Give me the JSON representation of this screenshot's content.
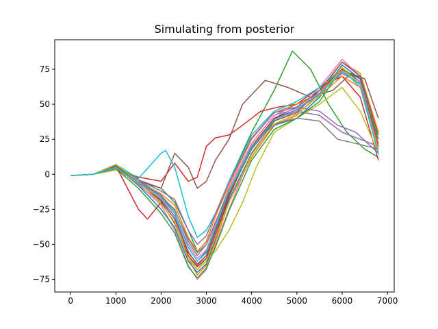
{
  "chart_data": {
    "type": "line",
    "title": "Simulating from posterior",
    "xlabel": "",
    "ylabel": "",
    "xlim": [
      -350,
      7150
    ],
    "ylim": [
      -84,
      96
    ],
    "xticks": [
      0,
      1000,
      2000,
      3000,
      4000,
      5000,
      6000,
      7000
    ],
    "yticks": [
      -75,
      -50,
      -25,
      0,
      25,
      50,
      75
    ],
    "grid": false,
    "legend": "none",
    "palette": [
      "#1f77b4",
      "#ff7f0e",
      "#2ca02c",
      "#d62728",
      "#9467bd",
      "#8c564b",
      "#e377c2",
      "#7f7f7f",
      "#bcbd22",
      "#17becf"
    ],
    "series": [
      {
        "x": [
          0,
          500,
          1000,
          1500,
          2000,
          2300,
          2600,
          2800,
          3000,
          3200,
          3500,
          4000,
          4500,
          5000,
          5500,
          6000,
          6400,
          6800
        ],
        "y": [
          -1,
          0,
          7,
          -4,
          -15,
          -28,
          -52,
          -62,
          -55,
          -40,
          -12,
          18,
          40,
          48,
          60,
          75,
          68,
          22
        ]
      },
      {
        "x": [
          0,
          500,
          1000,
          1500,
          2000,
          2300,
          2600,
          2800,
          3000,
          3200,
          3500,
          4000,
          4500,
          5000,
          5500,
          6000,
          6400,
          6800
        ],
        "y": [
          -1,
          0,
          5,
          -8,
          -20,
          -35,
          -60,
          -72,
          -65,
          -48,
          -20,
          12,
          35,
          42,
          58,
          80,
          72,
          30
        ]
      },
      {
        "x": [
          0,
          500,
          1000,
          1500,
          2000,
          2300,
          2600,
          2800,
          3000,
          3200,
          3500,
          4000,
          4500,
          4900,
          5300,
          5700,
          6100,
          6500,
          6800
        ],
        "y": [
          -1,
          0,
          6,
          -5,
          -10,
          -20,
          -40,
          -55,
          -48,
          -30,
          -5,
          30,
          60,
          88,
          75,
          50,
          30,
          18,
          12
        ]
      },
      {
        "x": [
          0,
          500,
          1000,
          1500,
          2000,
          2300,
          2600,
          2800,
          3000,
          3200,
          3500,
          3800,
          4200,
          4600,
          5000,
          5500,
          6000,
          6400,
          6800
        ],
        "y": [
          -1,
          0,
          4,
          -2,
          -5,
          8,
          -5,
          -2,
          20,
          26,
          28,
          35,
          45,
          48,
          50,
          62,
          70,
          55,
          10
        ]
      },
      {
        "x": [
          0,
          500,
          1000,
          1500,
          2000,
          2300,
          2600,
          2800,
          3000,
          3200,
          3500,
          4000,
          4500,
          5000,
          5500,
          6000,
          6400,
          6800
        ],
        "y": [
          -1,
          0,
          5,
          -6,
          -18,
          -30,
          -55,
          -65,
          -58,
          -42,
          -15,
          20,
          40,
          45,
          42,
          30,
          25,
          20
        ]
      },
      {
        "x": [
          0,
          500,
          1000,
          1500,
          2000,
          2300,
          2600,
          2800,
          3000,
          3200,
          3500,
          3800,
          4300,
          4800,
          5300,
          5800,
          6200,
          6500,
          6800
        ],
        "y": [
          -1,
          0,
          6,
          -4,
          -10,
          15,
          5,
          -10,
          -5,
          10,
          25,
          50,
          67,
          62,
          55,
          60,
          72,
          68,
          40
        ]
      },
      {
        "x": [
          0,
          500,
          1000,
          1500,
          2000,
          2300,
          2600,
          2800,
          3000,
          3200,
          3500,
          4000,
          4500,
          5000,
          5500,
          6000,
          6400,
          6800
        ],
        "y": [
          -1,
          0,
          5,
          -7,
          -22,
          -40,
          -65,
          -75,
          -68,
          -50,
          -25,
          15,
          38,
          45,
          62,
          82,
          70,
          25
        ]
      },
      {
        "x": [
          0,
          500,
          1000,
          1500,
          2000,
          2300,
          2600,
          2800,
          3000,
          3200,
          3500,
          4000,
          4500,
          5000,
          5500,
          6000,
          6400,
          6800
        ],
        "y": [
          -1,
          0,
          4,
          -5,
          -16,
          -25,
          -48,
          -58,
          -50,
          -35,
          -10,
          22,
          42,
          50,
          58,
          72,
          65,
          20
        ]
      },
      {
        "x": [
          0,
          500,
          1000,
          1500,
          2000,
          2300,
          2600,
          2800,
          3000,
          3200,
          3500,
          3800,
          4100,
          4500,
          5000,
          5500,
          6000,
          6400,
          6800
        ],
        "y": [
          -1,
          0,
          3,
          -6,
          -20,
          -35,
          -58,
          -68,
          -60,
          -55,
          -40,
          -20,
          5,
          30,
          40,
          50,
          62,
          45,
          15
        ]
      },
      {
        "x": [
          0,
          500,
          1000,
          1500,
          2000,
          2100,
          2300,
          2600,
          2800,
          3000,
          3200,
          3500,
          4000,
          4500,
          5000,
          5500,
          6000,
          6400,
          6800
        ],
        "y": [
          -1,
          0,
          7,
          -3,
          15,
          17,
          5,
          -30,
          -45,
          -40,
          -28,
          -5,
          28,
          45,
          52,
          62,
          75,
          62,
          15
        ]
      },
      {
        "x": [
          0,
          500,
          1000,
          1500,
          2000,
          2300,
          2600,
          2800,
          3000,
          3200,
          3500,
          4000,
          4500,
          5000,
          5500,
          6000,
          6400,
          6800
        ],
        "y": [
          -1,
          0,
          6,
          -8,
          -25,
          -38,
          -62,
          -70,
          -64,
          -46,
          -18,
          15,
          35,
          40,
          55,
          78,
          68,
          18
        ]
      },
      {
        "x": [
          0,
          500,
          1000,
          1500,
          2000,
          2300,
          2600,
          2800,
          3000,
          3200,
          3500,
          4000,
          4500,
          5000,
          5500,
          6000,
          6400,
          6800
        ],
        "y": [
          -1,
          0,
          5,
          -5,
          -14,
          -22,
          -45,
          -55,
          -48,
          -30,
          -8,
          25,
          44,
          50,
          56,
          70,
          62,
          22
        ]
      },
      {
        "x": [
          0,
          500,
          1000,
          1500,
          2000,
          2300,
          2600,
          2800,
          3000,
          3200,
          3500,
          4000,
          4500,
          5000,
          5500,
          6000,
          6400,
          6800
        ],
        "y": [
          -1,
          0,
          4,
          -10,
          -28,
          -42,
          -66,
          -74,
          -67,
          -52,
          -26,
          10,
          32,
          40,
          52,
          76,
          66,
          25
        ]
      },
      {
        "x": [
          0,
          500,
          1000,
          1500,
          1700,
          2000,
          2300,
          2600,
          2800,
          3000,
          3200,
          3500,
          4000,
          4500,
          5000,
          5500,
          6000,
          6400,
          6800
        ],
        "y": [
          -1,
          0,
          6,
          -25,
          -32,
          -20,
          -35,
          -58,
          -66,
          -60,
          -44,
          -16,
          20,
          40,
          46,
          58,
          75,
          66,
          20
        ]
      },
      {
        "x": [
          0,
          500,
          1000,
          1500,
          2000,
          2300,
          2600,
          2800,
          3000,
          3200,
          3500,
          4000,
          4500,
          5000,
          5500,
          5900,
          6300,
          6800
        ],
        "y": [
          -1,
          0,
          5,
          -4,
          -12,
          -18,
          -40,
          -50,
          -44,
          -28,
          -6,
          26,
          44,
          48,
          45,
          35,
          30,
          15
        ]
      },
      {
        "x": [
          0,
          500,
          1000,
          1500,
          2000,
          2300,
          2600,
          2800,
          3000,
          3200,
          3500,
          4000,
          4500,
          5000,
          5500,
          6000,
          6400,
          6800
        ],
        "y": [
          -1,
          0,
          6,
          -6,
          -19,
          -32,
          -56,
          -64,
          -58,
          -40,
          -14,
          18,
          38,
          44,
          60,
          80,
          70,
          28
        ]
      },
      {
        "x": [
          0,
          500,
          1000,
          1500,
          2000,
          2300,
          2600,
          2800,
          3000,
          3200,
          3500,
          4000,
          4500,
          5000,
          5500,
          6000,
          6400,
          6800
        ],
        "y": [
          -1,
          0,
          5,
          -7,
          -17,
          -28,
          -50,
          -60,
          -54,
          -36,
          -10,
          22,
          42,
          47,
          58,
          74,
          66,
          18
        ]
      },
      {
        "x": [
          0,
          500,
          1000,
          1500,
          2000,
          2300,
          2600,
          2800,
          3000,
          3200,
          3500,
          4000,
          4500,
          5000,
          5500,
          5900,
          6300,
          6800
        ],
        "y": [
          -1,
          0,
          4,
          -5,
          -15,
          -26,
          -46,
          -56,
          -50,
          -34,
          -12,
          20,
          36,
          40,
          38,
          25,
          22,
          18
        ]
      },
      {
        "x": [
          0,
          500,
          1000,
          1500,
          2000,
          2300,
          2600,
          2800,
          3000,
          3200,
          3500,
          4000,
          4500,
          5000,
          5500,
          6000,
          6400,
          6800
        ],
        "y": [
          -1,
          0,
          7,
          -5,
          -21,
          -34,
          -60,
          -68,
          -62,
          -45,
          -20,
          14,
          36,
          43,
          56,
          76,
          64,
          16
        ]
      },
      {
        "x": [
          0,
          500,
          1000,
          1500,
          2000,
          2300,
          2600,
          2800,
          3000,
          3200,
          3500,
          4000,
          4500,
          5000,
          5500,
          6000,
          6400,
          6800
        ],
        "y": [
          -1,
          0,
          5,
          -6,
          -16,
          -28,
          -52,
          -62,
          -56,
          -38,
          -12,
          19,
          39,
          46,
          57,
          73,
          64,
          14
        ]
      }
    ]
  }
}
